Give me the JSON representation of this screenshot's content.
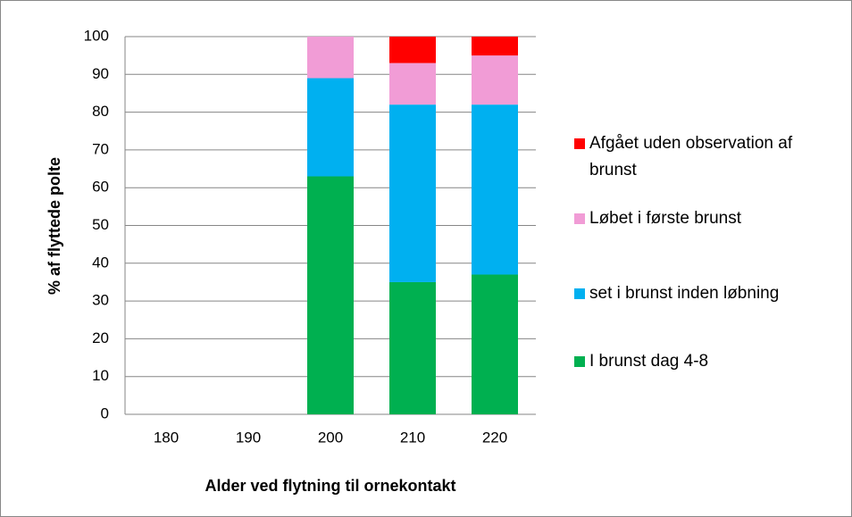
{
  "chart_data": {
    "type": "stacked_bar",
    "xlabel": "Alder ved flytning til ornekontakt",
    "ylabel": "% af flyttede polte",
    "categories": [
      "180",
      "190",
      "200",
      "210",
      "220"
    ],
    "series": [
      {
        "name": "I brunst dag 4-8",
        "color": "#00b050",
        "values": [
          0,
          0,
          63,
          35,
          37
        ]
      },
      {
        "name": "set i brunst inden løbning",
        "color": "#00b0f0",
        "values": [
          0,
          0,
          26,
          47,
          45
        ]
      },
      {
        "name": "Løbet i første brunst",
        "color": "#f19cd6",
        "values": [
          0,
          0,
          11,
          11,
          13
        ]
      },
      {
        "name": "Afgået uden observation af brunst",
        "color": "#ff0000",
        "values": [
          0,
          0,
          0,
          7,
          5
        ]
      }
    ],
    "ylim": [
      0,
      100
    ],
    "yticks": [
      0,
      10,
      20,
      30,
      40,
      50,
      60,
      70,
      80,
      90,
      100
    ],
    "grid": true
  }
}
